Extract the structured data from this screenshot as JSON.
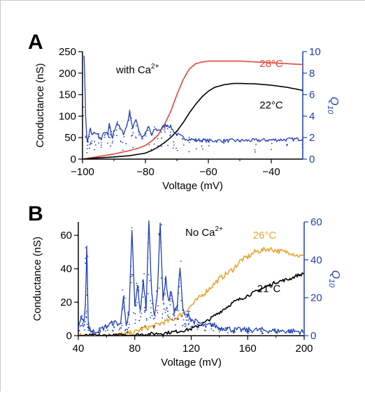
{
  "colors": {
    "left_axis": "#000000",
    "right_axis": "#1f3fb8",
    "panel_a_warm": "#e0473a",
    "panel_a_cool": "#000000",
    "panel_b_warm": "#e8a532",
    "panel_b_cool": "#000000",
    "q10": "#1f3fb8"
  },
  "chart_data": [
    {
      "type": "line",
      "panel_label": "A",
      "annotation": "with Ca",
      "annotation_sup": "2+",
      "xlabel": "Voltage (mV)",
      "ylabel": "Conductance (nS)",
      "y2label": "Q",
      "y2label_sub": "10",
      "xlim": [
        -100,
        -30
      ],
      "ylim": [
        0,
        250
      ],
      "y2lim": [
        0,
        10
      ],
      "xticks": [
        -100,
        -80,
        -60,
        -40
      ],
      "yticks": [
        0,
        50,
        100,
        150,
        200,
        250
      ],
      "y2ticks": [
        0,
        2,
        4,
        6,
        8,
        10
      ],
      "grid": false,
      "series": [
        {
          "name": "28°C",
          "axis": "left",
          "color_key": "panel_a_warm",
          "x": [
            -100,
            -95,
            -90,
            -85,
            -82,
            -80,
            -78,
            -76,
            -74,
            -72,
            -70,
            -68,
            -66,
            -64,
            -62,
            -60,
            -55,
            -50,
            -45,
            -40,
            -35,
            -30
          ],
          "y": [
            0,
            6,
            12,
            20,
            26,
            32,
            42,
            56,
            80,
            110,
            150,
            185,
            210,
            222,
            226,
            228,
            228,
            228,
            226,
            224,
            222,
            220
          ]
        },
        {
          "name": "22°C",
          "axis": "left",
          "color_key": "panel_a_cool",
          "x": [
            -100,
            -95,
            -90,
            -85,
            -80,
            -78,
            -76,
            -74,
            -72,
            -70,
            -68,
            -66,
            -64,
            -62,
            -60,
            -58,
            -55,
            -52,
            -50,
            -45,
            -40,
            -35,
            -30
          ],
          "y": [
            0,
            3,
            5,
            8,
            14,
            20,
            28,
            38,
            50,
            65,
            85,
            108,
            128,
            145,
            158,
            167,
            173,
            176,
            176,
            175,
            172,
            167,
            160
          ]
        },
        {
          "name": "",
          "axis": "right",
          "style": "noisy-line",
          "color_key": "q10",
          "x": [
            -99.5,
            -99.0,
            -98.5,
            -98.0,
            -97.5,
            -97.0,
            -96.0,
            -95.0,
            -94.0,
            -93.0,
            -92.0,
            -91.5,
            -91.0,
            -90.5,
            -90.0,
            -89.0,
            -88.0,
            -87.0,
            -86.0,
            -85.0,
            -84.5,
            -84.0,
            -83.0,
            -82.0,
            -81.0,
            -80.0,
            -79.0,
            -78.0,
            -77.0,
            -76.0,
            -75.0,
            -74.0,
            -73.0,
            -72.0,
            -71.0,
            -70.0,
            -68.0,
            -66.0,
            -64.0,
            -62.0,
            -60.0,
            -55.0,
            -50.0,
            -45.0,
            -40.0,
            -35.0,
            -30.0
          ],
          "y": [
            9.8,
            4.0,
            1.5,
            2.2,
            2.8,
            2.2,
            2.5,
            2.2,
            1.8,
            2.6,
            2.2,
            3.3,
            2.4,
            2.0,
            2.6,
            3.4,
            2.8,
            2.4,
            3.0,
            4.4,
            3.6,
            2.8,
            3.8,
            2.6,
            2.0,
            2.4,
            3.0,
            2.2,
            2.8,
            2.7,
            2.8,
            3.1,
            3.2,
            3.0,
            2.6,
            2.3,
            2.0,
            1.85,
            1.78,
            1.75,
            1.72,
            1.72,
            1.72,
            1.74,
            1.78,
            1.82,
            1.88
          ]
        }
      ],
      "series_labels": [
        {
          "text": "28°C",
          "color_key": "panel_a_warm",
          "x": -40,
          "y": 214
        },
        {
          "text": "22°C",
          "color_key": "panel_a_cool",
          "x": -40,
          "y": 118
        }
      ]
    },
    {
      "type": "line",
      "panel_label": "B",
      "annotation": "No Ca",
      "annotation_sup": "2+",
      "xlabel": "Voltage (mV)",
      "ylabel": "Conductance (nS)",
      "y2label": "Q",
      "y2label_sub": "10",
      "xlim": [
        40,
        200
      ],
      "ylim": [
        0,
        68
      ],
      "y2lim": [
        0,
        60
      ],
      "xticks": [
        40,
        80,
        120,
        160,
        200
      ],
      "yticks": [
        0,
        20,
        40,
        60
      ],
      "y2ticks": [
        0,
        20,
        40,
        60
      ],
      "grid": false,
      "series": [
        {
          "name": "26°C",
          "axis": "left",
          "color_key": "panel_b_warm",
          "x": [
            40,
            60,
            75,
            80,
            85,
            90,
            95,
            100,
            105,
            110,
            115,
            120,
            125,
            130,
            135,
            140,
            145,
            150,
            155,
            160,
            165,
            170,
            175,
            180,
            185,
            190,
            195,
            200
          ],
          "y": [
            0,
            0,
            1,
            2,
            4,
            5,
            6,
            8,
            9,
            11,
            14,
            18,
            22,
            26,
            30,
            34,
            37,
            40,
            45,
            47,
            50,
            51,
            52,
            51,
            50,
            50,
            48,
            47
          ],
          "noise": 1.6
        },
        {
          "name": "21°C",
          "axis": "left",
          "color_key": "panel_b_cool",
          "x": [
            40,
            60,
            80,
            90,
            100,
            110,
            120,
            125,
            130,
            135,
            140,
            145,
            150,
            155,
            160,
            165,
            170,
            175,
            180,
            185,
            190,
            195,
            200
          ],
          "y": [
            0,
            0,
            0.5,
            1,
            1.5,
            2.5,
            4,
            6,
            8,
            11,
            14,
            17,
            20,
            22,
            24,
            26,
            28,
            30,
            32,
            33,
            34,
            36,
            37
          ],
          "noise": 1.0
        },
        {
          "name": "",
          "axis": "right",
          "style": "noisy-line-dots",
          "color_key": "q10",
          "x": [
            40,
            42,
            44,
            45,
            46,
            47,
            48,
            50,
            55,
            60,
            65,
            70,
            72,
            74,
            76,
            78,
            80,
            82,
            84,
            86,
            88,
            90,
            92,
            94,
            96,
            98,
            100,
            102,
            104,
            106,
            108,
            110,
            112,
            114,
            116,
            118,
            120,
            125,
            130,
            135,
            140,
            145,
            150,
            160,
            170,
            180,
            190,
            200
          ],
          "y": [
            4,
            10,
            6,
            15,
            48,
            8,
            4,
            2,
            3,
            5,
            7,
            6,
            22,
            4,
            12,
            56,
            15,
            26,
            12,
            30,
            14,
            60,
            22,
            10,
            24,
            58,
            20,
            30,
            18,
            24,
            12,
            15,
            36,
            14,
            10,
            12,
            8,
            7,
            5,
            6,
            4,
            4,
            3,
            3,
            3,
            2.5,
            2.5,
            2
          ]
        }
      ],
      "series_labels": [
        {
          "text": "26°C",
          "color_key": "panel_b_warm",
          "x": 172,
          "y": 58
        },
        {
          "text": "21°C",
          "color_key": "panel_b_cool",
          "x": 175,
          "y": 26
        }
      ]
    }
  ]
}
